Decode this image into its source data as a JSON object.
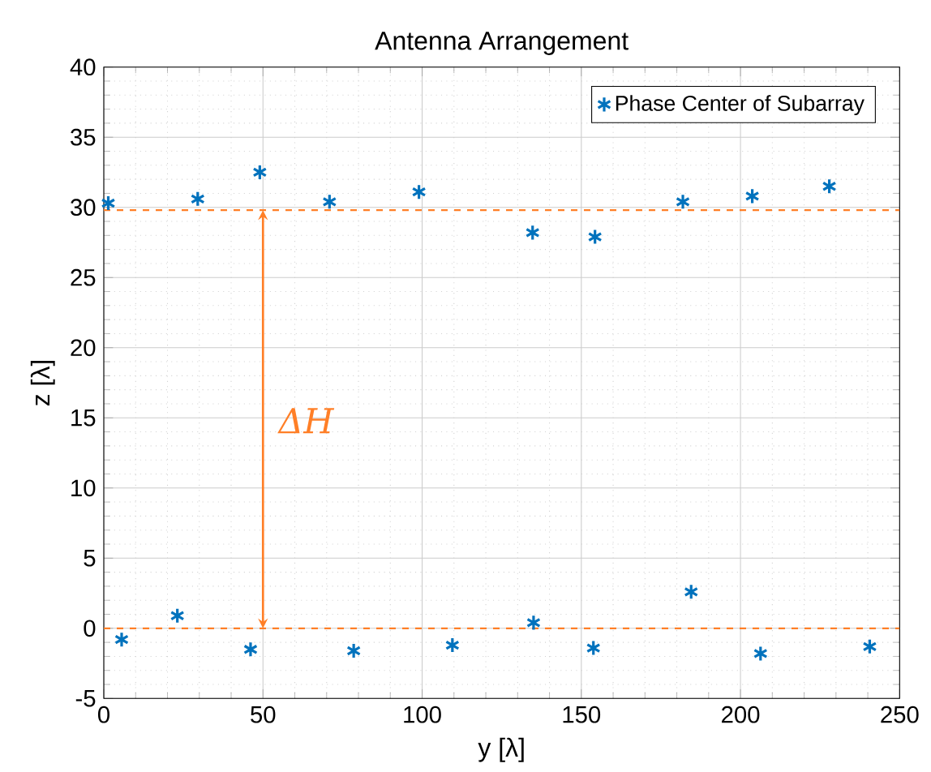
{
  "chart_data": {
    "type": "scatter",
    "title": "Antenna Arrangement",
    "xlabel": "y [λ]",
    "ylabel": "z [λ]",
    "series": [
      {
        "name": "Phase Center of Subarray",
        "color": "#0072bd",
        "x": [
          1.4,
          29.5,
          49,
          70.9,
          99,
          134.7,
          154.3,
          181.9,
          203.7,
          227.9,
          5.6,
          23.1,
          46.1,
          78.5,
          109.5,
          135,
          153.8,
          184.5,
          206.3,
          240.6
        ],
        "values": [
          30.3,
          30.6,
          32.5,
          30.4,
          31.1,
          28.2,
          27.9,
          30.4,
          30.8,
          31.5,
          -0.8,
          0.9,
          -1.5,
          -1.6,
          -1.2,
          0.4,
          -1.4,
          2.6,
          -1.8,
          -1.3
        ]
      }
    ],
    "xlim": [
      0,
      250
    ],
    "ylim": [
      -5,
      40
    ],
    "xticks": [
      0,
      50,
      100,
      150,
      200,
      250
    ],
    "yticks": [
      -5,
      0,
      5,
      10,
      15,
      20,
      25,
      30,
      35,
      40
    ],
    "ref_lines": [
      {
        "axis": "y",
        "value": 0,
        "color": "#ff7f27",
        "line_style": "dashed"
      },
      {
        "axis": "y",
        "value": 29.8,
        "color": "#ff7f27",
        "line_style": "dashed"
      }
    ],
    "annotations": [
      "ΔH"
    ],
    "grid": true,
    "legend": "top right",
    "marker": "cross"
  }
}
